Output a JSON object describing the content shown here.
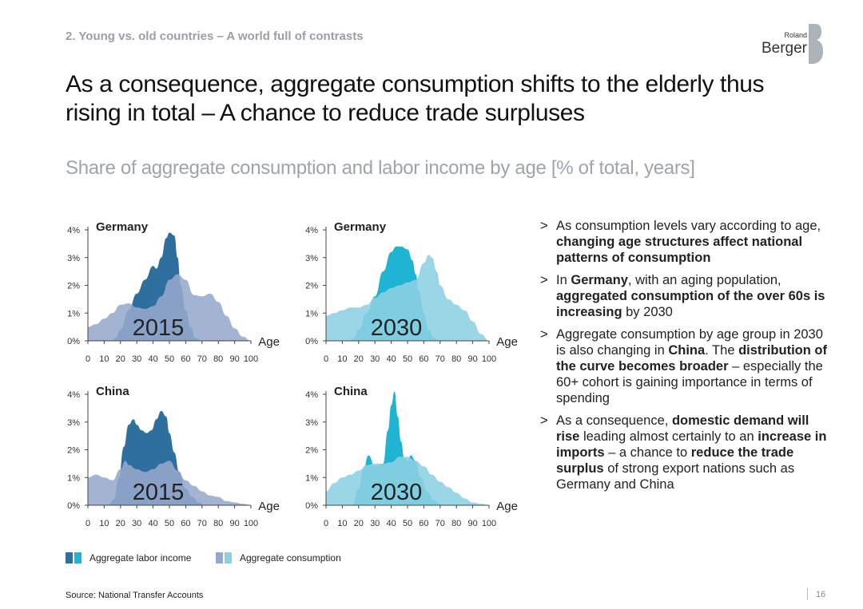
{
  "header": {
    "section": "2. Young vs. old countries – A world full of contrasts",
    "title": "As a consequence, aggregate consumption shifts to the elderly thus rising in total – A chance to reduce trade surpluses",
    "subtitle": "Share of aggregate consumption and labor income by age [% of total, years]"
  },
  "logo": {
    "line1": "Roland",
    "line2": "Berger",
    "mark": "B"
  },
  "colors": {
    "labor_2015": "#2f6f9e",
    "consumption_2015": "#96a9cc",
    "labor_2030": "#1fb4d4",
    "consumption_2030": "#8dd0e2",
    "axis": "#444444",
    "bullet_text": "#222222"
  },
  "chart_data": [
    {
      "type": "area",
      "title": "Germany",
      "year_label": "2015",
      "xlabel": "Age",
      "x_ticks": [
        0,
        10,
        20,
        30,
        40,
        50,
        60,
        70,
        80,
        90,
        100
      ],
      "y_ticks": [
        "0%",
        "1%",
        "2%",
        "3%",
        "4%"
      ],
      "xlim": [
        0,
        100
      ],
      "ylim": [
        0,
        4
      ],
      "series": [
        {
          "name": "Aggregate labor income",
          "x": [
            0,
            14,
            17,
            20,
            25,
            30,
            35,
            40,
            42,
            45,
            48,
            50,
            53,
            55,
            57,
            60,
            63,
            66,
            70
          ],
          "values": [
            0,
            0,
            0.1,
            0.4,
            1.1,
            1.7,
            2.2,
            2.7,
            2.6,
            3.0,
            3.7,
            3.9,
            3.8,
            3.0,
            2.0,
            1.1,
            0.5,
            0.1,
            0
          ]
        },
        {
          "name": "Aggregate consumption",
          "x": [
            0,
            5,
            10,
            15,
            20,
            25,
            30,
            35,
            40,
            45,
            50,
            55,
            60,
            65,
            70,
            75,
            80,
            85,
            90,
            95,
            100
          ],
          "values": [
            0.5,
            0.6,
            0.8,
            1.0,
            1.3,
            1.35,
            1.2,
            1.15,
            1.25,
            1.6,
            2.2,
            2.4,
            2.2,
            1.65,
            1.6,
            1.7,
            1.4,
            0.9,
            0.45,
            0.15,
            0
          ]
        }
      ]
    },
    {
      "type": "area",
      "title": "Germany",
      "year_label": "2030",
      "xlabel": "Age",
      "x_ticks": [
        0,
        10,
        20,
        30,
        40,
        50,
        60,
        70,
        80,
        90,
        100
      ],
      "y_ticks": [
        "0%",
        "1%",
        "2%",
        "3%",
        "4%"
      ],
      "xlim": [
        0,
        100
      ],
      "ylim": [
        0,
        4
      ],
      "series": [
        {
          "name": "Aggregate labor income",
          "x": [
            0,
            15,
            17,
            20,
            25,
            30,
            35,
            40,
            43,
            46,
            50,
            53,
            55,
            57,
            60,
            63,
            66,
            70
          ],
          "values": [
            0,
            0,
            0.1,
            0.4,
            1.0,
            1.6,
            2.5,
            3.2,
            3.4,
            3.4,
            3.3,
            2.9,
            2.4,
            1.8,
            1.0,
            0.4,
            0.1,
            0
          ]
        },
        {
          "name": "Aggregate consumption",
          "x": [
            0,
            5,
            10,
            15,
            20,
            25,
            30,
            35,
            40,
            45,
            50,
            55,
            60,
            63,
            65,
            68,
            70,
            75,
            80,
            85,
            90,
            95,
            100
          ],
          "values": [
            0.9,
            1.0,
            1.1,
            1.2,
            1.2,
            1.3,
            1.55,
            1.75,
            1.9,
            2.0,
            2.1,
            2.2,
            2.8,
            3.1,
            3.0,
            2.5,
            2.0,
            1.5,
            1.3,
            1.1,
            0.7,
            0.25,
            0
          ]
        }
      ]
    },
    {
      "type": "area",
      "title": "China",
      "year_label": "2015",
      "xlabel": "Age",
      "x_ticks": [
        0,
        10,
        20,
        30,
        40,
        50,
        60,
        70,
        80,
        90,
        100
      ],
      "y_ticks": [
        "0%",
        "1%",
        "2%",
        "3%",
        "4%"
      ],
      "xlim": [
        0,
        100
      ],
      "ylim": [
        0,
        4
      ],
      "series": [
        {
          "name": "Aggregate labor income",
          "x": [
            0,
            12,
            16,
            19,
            22,
            25,
            28,
            30,
            33,
            36,
            39,
            42,
            45,
            48,
            50,
            53,
            56,
            60,
            64,
            68,
            72
          ],
          "values": [
            0,
            0,
            0.2,
            1.0,
            2.1,
            2.9,
            3.1,
            2.9,
            2.7,
            2.6,
            2.7,
            3.1,
            3.4,
            3.2,
            2.6,
            1.9,
            1.2,
            0.6,
            0.3,
            0.1,
            0
          ]
        },
        {
          "name": "Aggregate consumption",
          "x": [
            0,
            5,
            10,
            15,
            20,
            23,
            25,
            30,
            35,
            40,
            45,
            50,
            55,
            60,
            65,
            70,
            75,
            80,
            85,
            90,
            95,
            100
          ],
          "values": [
            1.0,
            1.1,
            1.0,
            0.9,
            1.3,
            1.6,
            1.45,
            1.3,
            1.2,
            1.3,
            1.5,
            1.6,
            1.25,
            0.9,
            0.7,
            0.5,
            0.35,
            0.3,
            0.15,
            0.1,
            0.05,
            0
          ]
        }
      ]
    },
    {
      "type": "area",
      "title": "China",
      "year_label": "2030",
      "xlabel": "Age",
      "x_ticks": [
        0,
        10,
        20,
        30,
        40,
        50,
        60,
        70,
        80,
        90,
        100
      ],
      "y_ticks": [
        "0%",
        "1%",
        "2%",
        "3%",
        "4%"
      ],
      "xlim": [
        0,
        100
      ],
      "ylim": [
        0,
        4
      ],
      "series": [
        {
          "name": "Aggregate labor income",
          "x": [
            0,
            16,
            20,
            23,
            26,
            30,
            35,
            38,
            40,
            42,
            44,
            46,
            48,
            50,
            52,
            55,
            58,
            62,
            66,
            70,
            74
          ],
          "values": [
            0,
            0,
            0.6,
            1.3,
            1.8,
            1.4,
            1.5,
            2.7,
            3.6,
            4.1,
            3.2,
            2.3,
            1.7,
            1.6,
            1.8,
            1.6,
            1.0,
            0.5,
            0.2,
            0.05,
            0
          ]
        },
        {
          "name": "Aggregate consumption",
          "x": [
            0,
            5,
            10,
            15,
            20,
            25,
            30,
            35,
            40,
            45,
            50,
            55,
            60,
            65,
            70,
            75,
            80,
            85,
            90,
            95,
            100
          ],
          "values": [
            0.5,
            0.8,
            1.0,
            1.1,
            1.25,
            1.45,
            1.5,
            1.5,
            1.55,
            1.75,
            1.75,
            1.6,
            1.4,
            1.1,
            0.85,
            0.65,
            0.45,
            0.25,
            0.1,
            0.05,
            0
          ]
        }
      ]
    }
  ],
  "bullets": [
    {
      "segments": [
        {
          "t": "As consumption levels vary according to age, ",
          "b": false
        },
        {
          "t": "changing age structures affect national patterns of consumption",
          "b": true
        }
      ]
    },
    {
      "segments": [
        {
          "t": "In ",
          "b": false
        },
        {
          "t": "Germany",
          "b": true
        },
        {
          "t": ", with an aging population, ",
          "b": false
        },
        {
          "t": "aggregated consumption of the over 60s is increasing",
          "b": true
        },
        {
          "t": " by 2030",
          "b": false
        }
      ]
    },
    {
      "segments": [
        {
          "t": "Aggregate consumption by age group in 2030 is also changing in ",
          "b": false
        },
        {
          "t": "China",
          "b": true
        },
        {
          "t": ". The ",
          "b": false
        },
        {
          "t": "distribution of the curve becomes broader",
          "b": true
        },
        {
          "t": " – especially the 60+ cohort is gaining importance in terms of spending",
          "b": false
        }
      ]
    },
    {
      "segments": [
        {
          "t": "As a consequence, ",
          "b": false
        },
        {
          "t": "domestic demand will rise",
          "b": true
        },
        {
          "t": " leading almost certainly to an ",
          "b": false
        },
        {
          "t": "increase in imports",
          "b": true
        },
        {
          "t": " – a chance to ",
          "b": false
        },
        {
          "t": "reduce the trade surplus",
          "b": true
        },
        {
          "t": " of strong export nations such as Germany and China",
          "b": false
        }
      ]
    }
  ],
  "bullet_marker": ">",
  "legend": {
    "labor": "Aggregate labor income",
    "consumption": "Aggregate consumption"
  },
  "footer": {
    "source": "Source: National Transfer Accounts",
    "page": "16"
  }
}
